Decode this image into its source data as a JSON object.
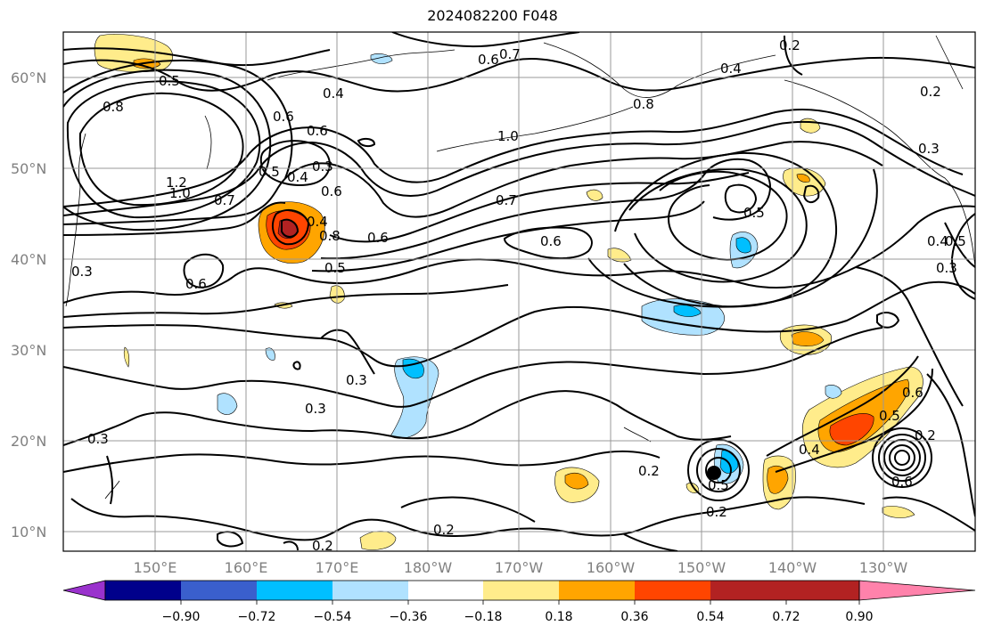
{
  "title": "2024082200 F048",
  "lat_labels": [
    "60°N",
    "50°N",
    "40°N",
    "30°N",
    "20°N",
    "10°N"
  ],
  "lon_labels": [
    "150°E",
    "160°E",
    "170°E",
    "180°W",
    "170°W",
    "160°W",
    "150°W",
    "140°W",
    "130°W"
  ],
  "colorbar": {
    "colors": [
      "#9a32cd",
      "#00008b",
      "#3a5fcd",
      "#00bfff",
      "#b0e2ff",
      "#ffffff",
      "#ffec8b",
      "#ffa500",
      "#ff4500",
      "#b22222",
      "#ff82ab"
    ],
    "tick_labels": [
      "−0.90",
      "−0.72",
      "−0.54",
      "−0.36",
      "−0.18",
      "0.18",
      "0.36",
      "0.54",
      "0.72",
      "0.90"
    ]
  },
  "contour_labels": [
    "0.5",
    "0.4",
    "0.8",
    "0.6",
    "0.7",
    "0.6",
    "0.4",
    "0.2",
    "0.2",
    "0.3",
    "0.6",
    "0.3",
    "1.0",
    "0.8",
    "1.2",
    "1.0",
    "0.7",
    "0.5",
    "0.4",
    "0.3",
    "0.7",
    "0.8",
    "0.6",
    "0.5",
    "0.5",
    "0.6",
    "0.6",
    "0.6",
    "0.5",
    "0.4",
    "0.3",
    "0.3",
    "0.3",
    "0.3",
    "0.2",
    "0.2",
    "0.2",
    "0.5",
    "0.6",
    "0.4",
    "0.5",
    "0.6",
    "0.2",
    "0.4",
    "0.2"
  ]
}
